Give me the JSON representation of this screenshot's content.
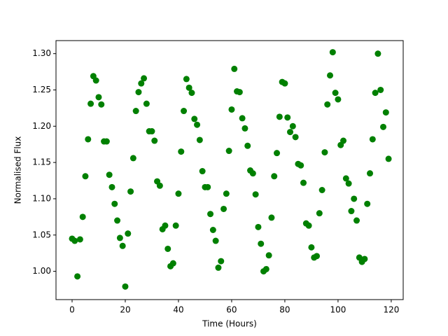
{
  "chart_data": {
    "type": "scatter",
    "x_label": "Time (Hours)",
    "y_label": "Normalised Flux",
    "series": [
      {
        "color": "#008000",
        "x": [
          0,
          1,
          2,
          3,
          4,
          5,
          6,
          7,
          8,
          9,
          10,
          11,
          12,
          13,
          14,
          15,
          16,
          17,
          18,
          19,
          20,
          21,
          22,
          23,
          24,
          25,
          26,
          27,
          28,
          29,
          30,
          31,
          32,
          33,
          34,
          35,
          36,
          37,
          38,
          39,
          40,
          41,
          42,
          43,
          44,
          45,
          46,
          47,
          48,
          49,
          50,
          51,
          52,
          53,
          54,
          55,
          56,
          57,
          58,
          59,
          60,
          61,
          62,
          63,
          64,
          65,
          66,
          67,
          68,
          69,
          70,
          71,
          72,
          73,
          74,
          75,
          76,
          77,
          78,
          79,
          80,
          81,
          82,
          83,
          84,
          85,
          86,
          87,
          88,
          89,
          90,
          91,
          92,
          93,
          94,
          95,
          96,
          97,
          98,
          99,
          100,
          101,
          102,
          103,
          104,
          105,
          106,
          107,
          108,
          109,
          110,
          111,
          112,
          113,
          114,
          115,
          116,
          117,
          118,
          119
        ],
        "values": [
          1.045,
          1.042,
          0.993,
          1.044,
          1.075,
          1.131,
          1.182,
          1.231,
          1.269,
          1.263,
          1.24,
          1.23,
          1.179,
          1.179,
          1.133,
          1.116,
          1.093,
          1.07,
          1.046,
          1.035,
          0.979,
          1.052,
          1.11,
          1.156,
          1.221,
          1.247,
          1.259,
          1.266,
          1.231,
          1.193,
          1.193,
          1.18,
          1.124,
          1.118,
          1.058,
          1.063,
          1.031,
          1.007,
          1.011,
          1.063,
          1.107,
          1.165,
          1.221,
          1.265,
          1.253,
          1.246,
          1.21,
          1.202,
          1.181,
          1.138,
          1.116,
          1.116,
          1.079,
          1.057,
          1.042,
          1.005,
          1.014,
          1.086,
          1.107,
          1.166,
          1.223,
          1.279,
          1.248,
          1.247,
          1.211,
          1.197,
          1.173,
          1.139,
          1.135,
          1.106,
          1.061,
          1.038,
          1.0,
          1.003,
          1.022,
          1.074,
          1.131,
          1.163,
          1.213,
          1.261,
          1.259,
          1.212,
          1.192,
          1.2,
          1.185,
          1.148,
          1.146,
          1.122,
          1.066,
          1.063,
          1.033,
          1.019,
          1.021,
          1.08,
          1.112,
          1.164,
          1.23,
          1.27,
          1.302,
          1.246,
          1.237,
          1.174,
          1.18,
          1.128,
          1.121,
          1.083,
          1.1,
          1.07,
          1.019,
          1.013,
          1.017,
          1.093,
          1.135,
          1.182,
          1.246,
          1.3,
          1.25,
          1.199,
          1.219,
          1.155
        ]
      }
    ],
    "xlim": [
      -6.05,
      124.5
    ],
    "ylim": [
      0.961,
      1.318
    ],
    "xticks": [
      0,
      20,
      40,
      60,
      80,
      100,
      120
    ],
    "yticks": [
      {
        "value": 1.0,
        "label": "1.00"
      },
      {
        "value": 1.05,
        "label": "1.05"
      },
      {
        "value": 1.1,
        "label": "1.10"
      },
      {
        "value": 1.15,
        "label": "1.15"
      },
      {
        "value": 1.2,
        "label": "1.20"
      },
      {
        "value": 1.25,
        "label": "1.25"
      },
      {
        "value": 1.3,
        "label": "1.30"
      }
    ]
  }
}
